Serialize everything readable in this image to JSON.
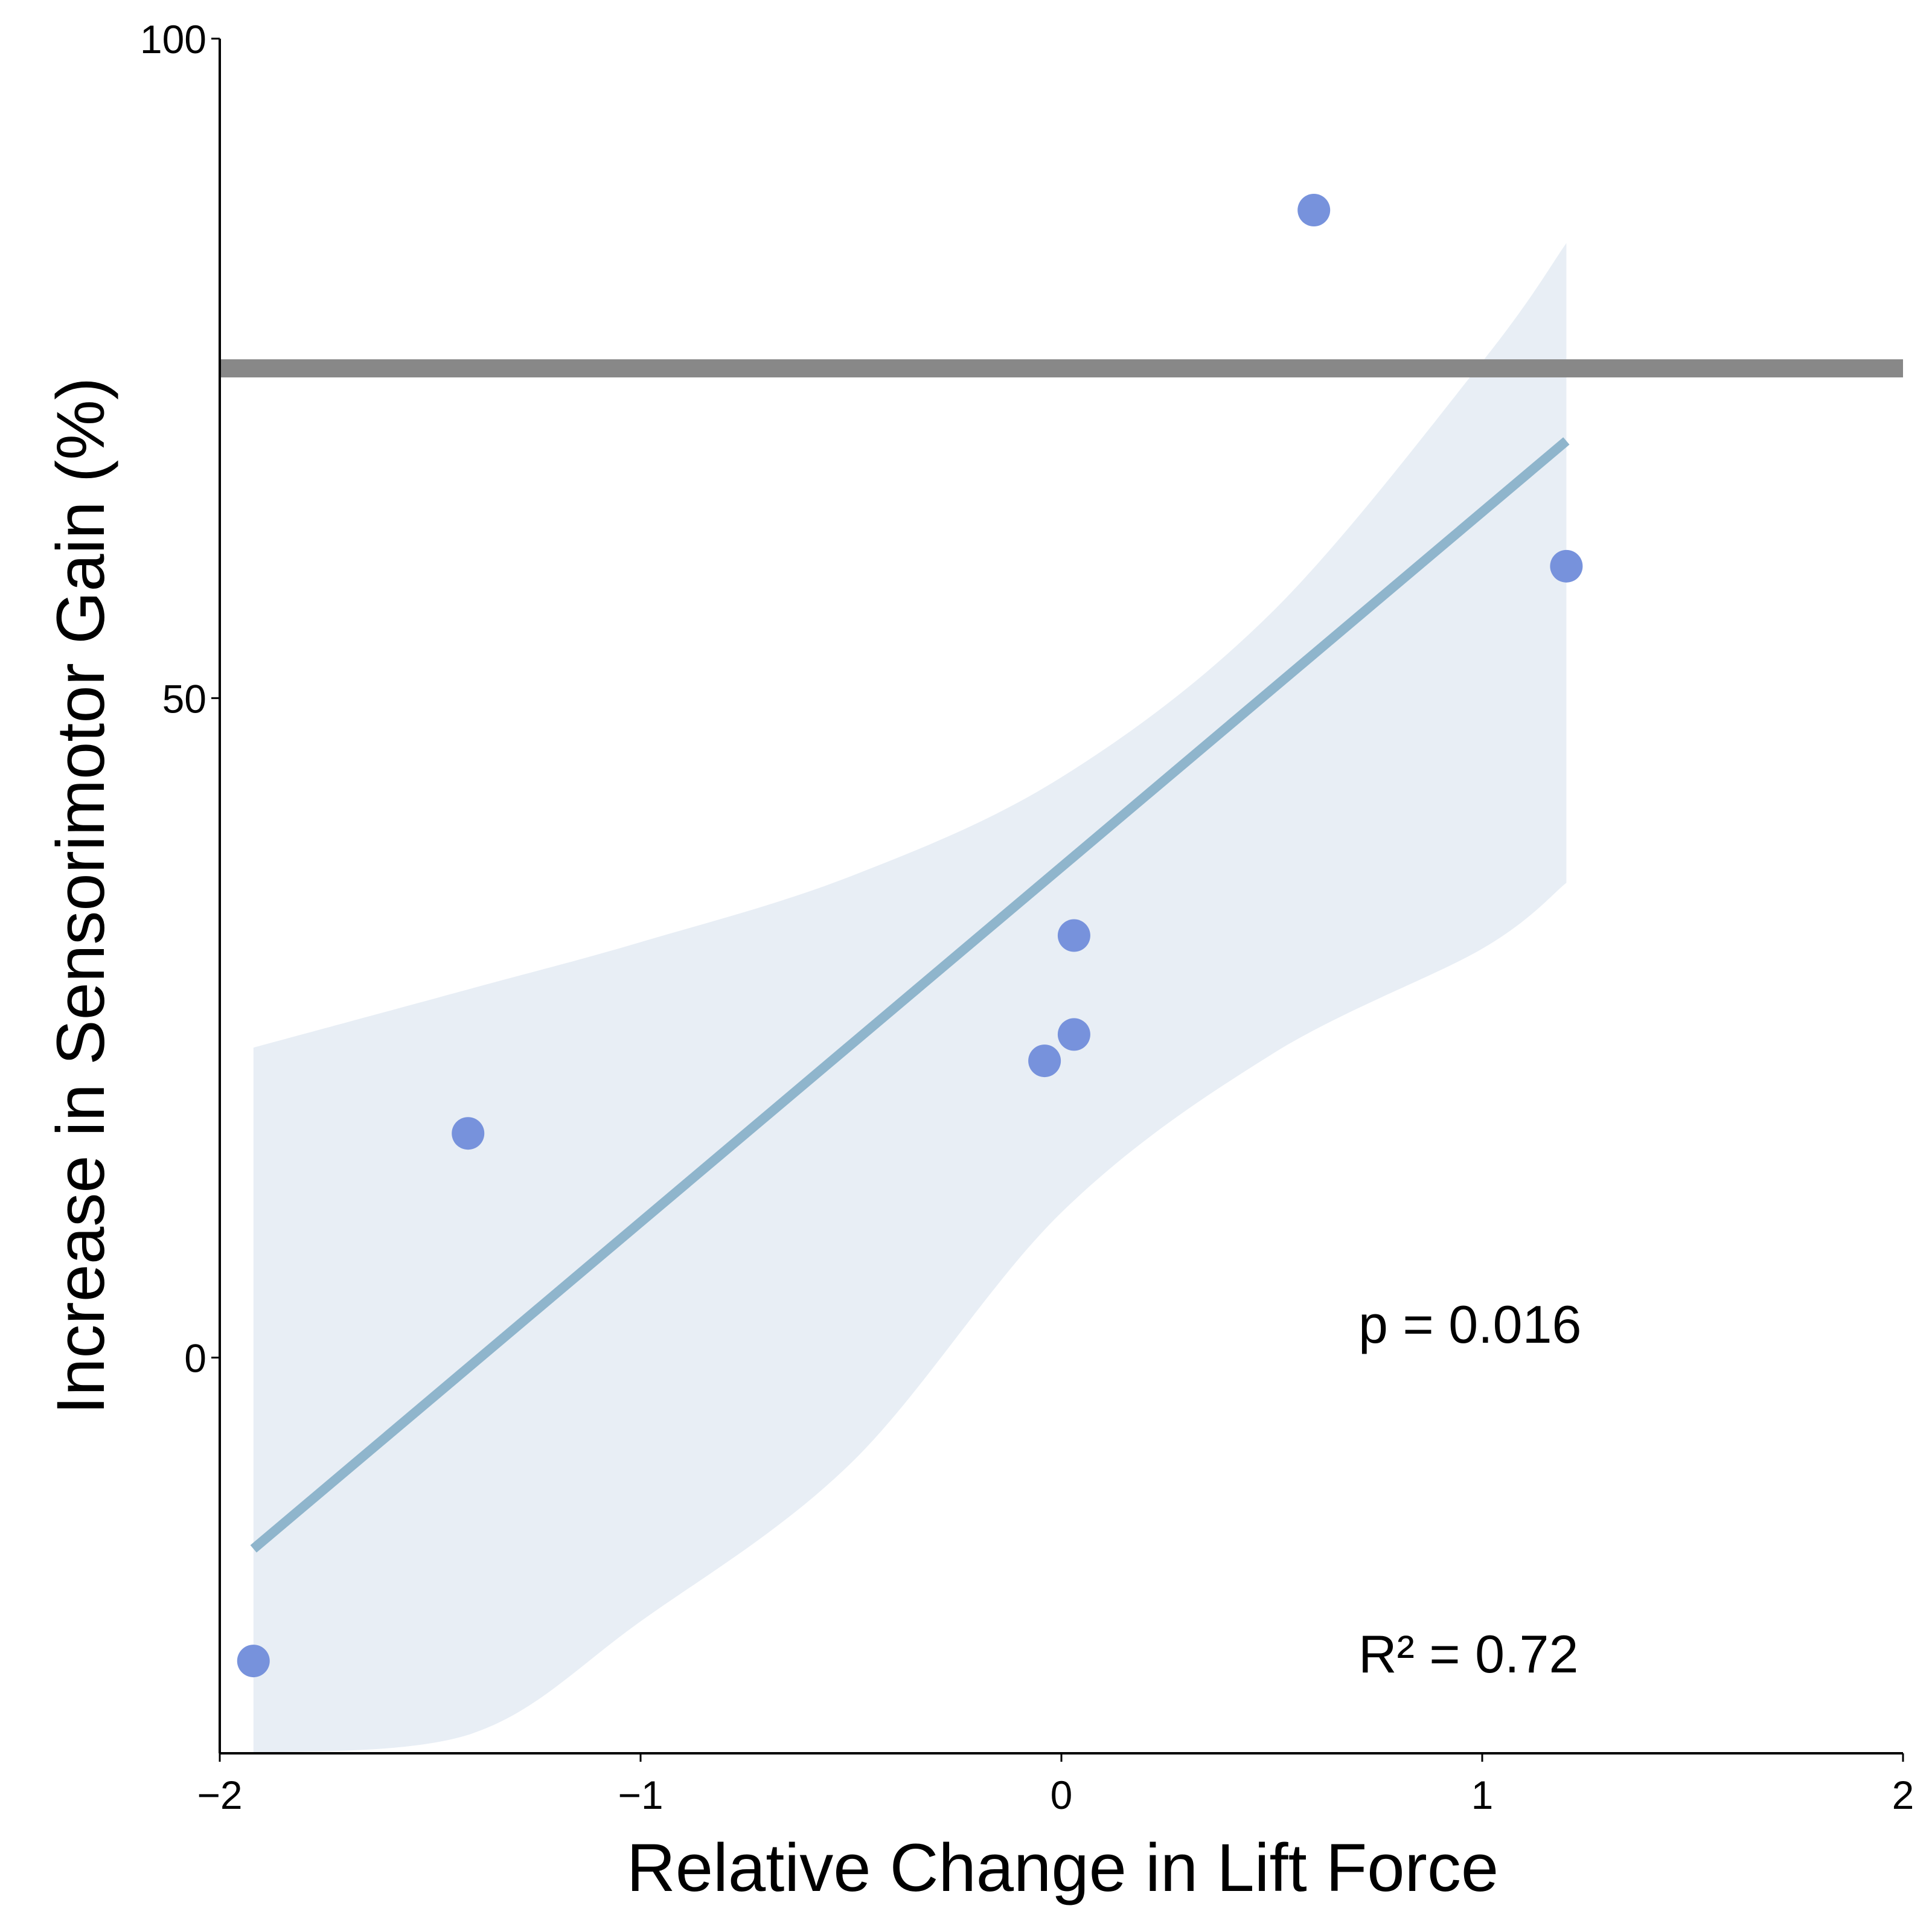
{
  "chart_data": {
    "type": "scatter",
    "title": "",
    "xlabel": "Relative Change in Lift Force",
    "ylabel": "Increase in Sensorimotor Gain (%)",
    "xlim": [
      -2,
      2
    ],
    "ylim": [
      -30,
      100
    ],
    "x_ticks": [
      {
        "value": -2,
        "label": "−2"
      },
      {
        "value": -1,
        "label": "−1"
      },
      {
        "value": 0,
        "label": "0"
      },
      {
        "value": 1,
        "label": "1"
      },
      {
        "value": 2,
        "label": "2"
      }
    ],
    "y_ticks": [
      {
        "value": 0,
        "label": "0"
      },
      {
        "value": 50,
        "label": "50"
      },
      {
        "value": 100,
        "label": "100"
      }
    ],
    "grid": false,
    "points": [
      {
        "x": -1.92,
        "y": -23
      },
      {
        "x": -1.41,
        "y": 17
      },
      {
        "x": -0.04,
        "y": 22.5
      },
      {
        "x": 0.03,
        "y": 24.5
      },
      {
        "x": 0.03,
        "y": 32
      },
      {
        "x": 0.6,
        "y": 87
      },
      {
        "x": 1.2,
        "y": 60
      }
    ],
    "regression_line": {
      "x": [
        -1.92,
        1.2
      ],
      "y": [
        -14.5,
        69.5
      ]
    },
    "confidence_band": {
      "x": [
        -1.92,
        -1.4,
        -1.0,
        -0.5,
        0.0,
        0.5,
        1.0,
        1.2
      ],
      "upper": [
        23.5,
        28,
        31.5,
        36.5,
        44,
        56.5,
        75.5,
        84.5
      ],
      "lower": [
        -30,
        -28.5,
        -20,
        -8,
        11,
        23,
        31,
        36
      ],
      "upper_clipped_at": 100,
      "lower_clipped_at": -30
    },
    "reference_line": {
      "y": 75
    },
    "annotations": [
      "p = 0.016",
      "R² = 0.72"
    ],
    "colors": {
      "points": "#7792dc",
      "regression": "#8fb5cc",
      "band": "#e8eef5",
      "reference": "#888888",
      "axis": "#000000"
    }
  }
}
